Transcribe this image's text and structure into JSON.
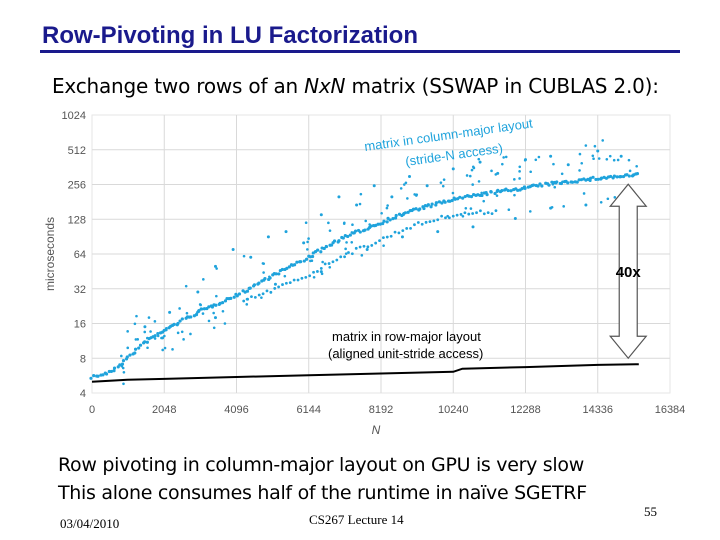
{
  "slide": {
    "title": "Row-Pivoting in LU Factorization",
    "subtitle_pre": "Exchange two rows of an ",
    "subtitle_em": "NxN",
    "subtitle_post": " matrix (SSWAP in CUBLAS 2.0):",
    "bullets": [
      "Row pivoting in column-major layout on GPU is very slow",
      "This alone consumes half of the runtime in naïve SGETRF"
    ],
    "footer_date": "03/04/2010",
    "footer_center": "CS267 Lecture 14",
    "page_number": "55"
  },
  "colors": {
    "title": "#1a1a8c",
    "column_major": "#1fa3dc",
    "row_major": "#000000",
    "grid": "#d9d9d9",
    "arrow_fill": "#ffffff",
    "arrow_stroke": "#555555"
  },
  "chart_data": {
    "type": "scatter",
    "xlabel": "N",
    "ylabel": "microseconds",
    "yscale": "log2",
    "xlim": [
      0,
      16384
    ],
    "ylim": [
      4,
      1024
    ],
    "x_ticks": [
      0,
      2048,
      4096,
      6144,
      8192,
      10240,
      12288,
      14336,
      16384
    ],
    "y_ticks": [
      4,
      8,
      16,
      32,
      64,
      128,
      256,
      512,
      1024
    ],
    "x_tick_labels": [
      "0",
      "2048",
      "4096",
      "6144",
      "8192",
      "10240",
      "12288",
      "14336",
      "16384"
    ],
    "y_tick_labels": [
      "4",
      "8",
      "16",
      "32",
      "64",
      "128",
      "256",
      "512",
      "1024"
    ],
    "series": [
      {
        "name": "matrix in column-major layout (stride-N access)",
        "label_line1": "matrix in column-major layout",
        "label_line2": "(stride-N access)",
        "style": "dots",
        "trend": [
          [
            0,
            5.5
          ],
          [
            500,
            6
          ],
          [
            1000,
            8
          ],
          [
            1500,
            11
          ],
          [
            2048,
            14
          ],
          [
            3000,
            20
          ],
          [
            4096,
            28
          ],
          [
            5000,
            40
          ],
          [
            6144,
            60
          ],
          [
            7000,
            85
          ],
          [
            8192,
            120
          ],
          [
            9000,
            150
          ],
          [
            10240,
            190
          ],
          [
            11000,
            210
          ],
          [
            12288,
            240
          ],
          [
            13000,
            260
          ],
          [
            14336,
            290
          ],
          [
            15500,
            310
          ]
        ],
        "lower_branch": [
          [
            4300,
            25
          ],
          [
            5000,
            30
          ],
          [
            6144,
            42
          ],
          [
            7000,
            60
          ],
          [
            8000,
            80
          ],
          [
            9000,
            110
          ],
          [
            10240,
            140
          ],
          [
            11500,
            150
          ]
        ],
        "scatter_above": [
          [
            1500,
            15
          ],
          [
            2200,
            20
          ],
          [
            3000,
            30
          ],
          [
            3500,
            50
          ],
          [
            4000,
            70
          ],
          [
            4500,
            60
          ],
          [
            5000,
            90
          ],
          [
            5500,
            100
          ],
          [
            6000,
            80
          ],
          [
            6500,
            140
          ],
          [
            7000,
            200
          ],
          [
            7500,
            170
          ],
          [
            8000,
            250
          ],
          [
            8500,
            200
          ],
          [
            9000,
            300
          ],
          [
            9500,
            250
          ],
          [
            10240,
            350
          ],
          [
            11000,
            400
          ],
          [
            11500,
            320
          ],
          [
            12288,
            420
          ],
          [
            13000,
            450
          ],
          [
            13500,
            380
          ],
          [
            14336,
            500
          ],
          [
            15000,
            450
          ]
        ],
        "scatter_below": [
          [
            2000,
            12
          ],
          [
            3500,
            18
          ],
          [
            5200,
            35
          ],
          [
            6500,
            45
          ],
          [
            7800,
            70
          ],
          [
            8800,
            90
          ],
          [
            9800,
            100
          ],
          [
            10800,
            110
          ],
          [
            12000,
            130
          ],
          [
            13000,
            160
          ],
          [
            14000,
            170
          ],
          [
            15000,
            180
          ]
        ]
      },
      {
        "name": "matrix in row-major layout (aligned unit-stride access)",
        "label_line1": "matrix in row-major layout",
        "label_line2": "(aligned unit-stride access)",
        "style": "line",
        "points": [
          [
            0,
            5.0
          ],
          [
            1000,
            5.2
          ],
          [
            2048,
            5.3
          ],
          [
            4096,
            5.5
          ],
          [
            6144,
            5.7
          ],
          [
            8192,
            5.9
          ],
          [
            10240,
            6.1
          ],
          [
            10500,
            6.5
          ],
          [
            12288,
            6.7
          ],
          [
            14336,
            7.0
          ],
          [
            15500,
            7.1
          ]
        ]
      }
    ],
    "annotation": {
      "text": "40x",
      "x": 15200,
      "y_top": 290,
      "y_bottom": 7.1
    }
  }
}
